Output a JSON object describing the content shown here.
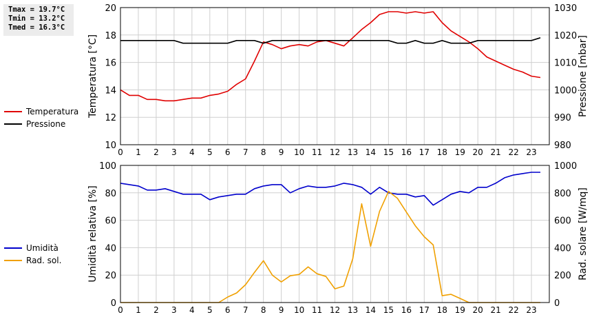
{
  "stats": {
    "tmax": "Tmax = 19.7°C",
    "tmin": "Tmin = 13.2°C",
    "tmed": "Tmed = 16.3°C"
  },
  "chart_data": [
    {
      "type": "line",
      "x": [
        0,
        0.5,
        1,
        1.5,
        2,
        2.5,
        3,
        3.5,
        4,
        4.5,
        5,
        5.5,
        6,
        6.5,
        7,
        7.5,
        8,
        8.5,
        9,
        9.5,
        10,
        10.5,
        11,
        11.5,
        12,
        12.5,
        13,
        13.5,
        14,
        14.5,
        15,
        15.5,
        16,
        16.5,
        17,
        17.5,
        18,
        18.5,
        19,
        19.5,
        20,
        20.5,
        21,
        21.5,
        22,
        22.5,
        23,
        23.5
      ],
      "xlim": [
        0,
        24
      ],
      "xticks": [
        "0",
        "1",
        "2",
        "3",
        "4",
        "5",
        "6",
        "7",
        "8",
        "9",
        "10",
        "11",
        "12",
        "13",
        "14",
        "15",
        "16",
        "17",
        "18",
        "19",
        "20",
        "21",
        "22",
        "23"
      ],
      "ylabel": "Temperatura [°C]",
      "ylim": [
        10,
        20
      ],
      "yticks": [
        "10",
        "12",
        "14",
        "16",
        "18",
        "20"
      ],
      "y2label": "Pressione [mbar]",
      "y2lim": [
        980,
        1030
      ],
      "y2ticks": [
        "980",
        "990",
        "1000",
        "1010",
        "1020",
        "1030"
      ],
      "grid": true,
      "series": [
        {
          "name": "Temperatura",
          "axis": "left",
          "color": "#e00000",
          "values": [
            14.0,
            13.6,
            13.6,
            13.3,
            13.3,
            13.2,
            13.2,
            13.3,
            13.4,
            13.4,
            13.6,
            13.7,
            13.9,
            14.4,
            14.8,
            16.1,
            17.5,
            17.3,
            17.0,
            17.2,
            17.3,
            17.2,
            17.5,
            17.6,
            17.4,
            17.2,
            17.8,
            18.4,
            18.9,
            19.5,
            19.7,
            19.7,
            19.6,
            19.7,
            19.6,
            19.7,
            18.9,
            18.3,
            17.9,
            17.5,
            17.0,
            16.4,
            16.1,
            15.8,
            15.5,
            15.3,
            15.0,
            14.9
          ]
        },
        {
          "name": "Pressione",
          "axis": "right",
          "color": "#000000",
          "values": [
            1018,
            1018,
            1018,
            1018,
            1018,
            1018,
            1018,
            1017,
            1017,
            1017,
            1017,
            1017,
            1017,
            1018,
            1018,
            1018,
            1017,
            1018,
            1018,
            1018,
            1018,
            1018,
            1018,
            1018,
            1018,
            1018,
            1018,
            1018,
            1018,
            1018,
            1018,
            1017,
            1017,
            1018,
            1017,
            1017,
            1018,
            1017,
            1017,
            1017,
            1018,
            1018,
            1018,
            1018,
            1018,
            1018,
            1018,
            1019
          ]
        }
      ]
    },
    {
      "type": "line",
      "x": [
        0,
        0.5,
        1,
        1.5,
        2,
        2.5,
        3,
        3.5,
        4,
        4.5,
        5,
        5.5,
        6,
        6.5,
        7,
        7.5,
        8,
        8.5,
        9,
        9.5,
        10,
        10.5,
        11,
        11.5,
        12,
        12.5,
        13,
        13.5,
        14,
        14.5,
        15,
        15.5,
        16,
        16.5,
        17,
        17.5,
        18,
        18.5,
        19,
        19.5,
        20,
        20.5,
        21,
        21.5,
        22,
        22.5,
        23,
        23.5
      ],
      "xlim": [
        0,
        24
      ],
      "xticks": [
        "0",
        "1",
        "2",
        "3",
        "4",
        "5",
        "6",
        "7",
        "8",
        "9",
        "10",
        "11",
        "12",
        "13",
        "14",
        "15",
        "16",
        "17",
        "18",
        "19",
        "20",
        "21",
        "22",
        "23"
      ],
      "ylabel": "Umidità relativa [%]",
      "ylim": [
        0,
        100
      ],
      "yticks": [
        "0",
        "20",
        "40",
        "60",
        "80",
        "100"
      ],
      "y2label": "Rad. solare [W/mq]",
      "y2lim": [
        0,
        1000
      ],
      "y2ticks": [
        "0",
        "200",
        "400",
        "600",
        "800",
        "1000"
      ],
      "grid": true,
      "series": [
        {
          "name": "Umidità",
          "axis": "left",
          "color": "#0000cc",
          "values": [
            87,
            86,
            85,
            82,
            82,
            83,
            81,
            79,
            79,
            79,
            75,
            77,
            78,
            79,
            79,
            83,
            85,
            86,
            86,
            80,
            83,
            85,
            84,
            84,
            85,
            87,
            86,
            84,
            79,
            84,
            80,
            79,
            79,
            77,
            78,
            71,
            75,
            79,
            81,
            80,
            84,
            84,
            87,
            91,
            93,
            94,
            95,
            95
          ]
        },
        {
          "name": "Rad. sol.",
          "axis": "right",
          "color": "#f0a000",
          "values": [
            0,
            0,
            0,
            0,
            0,
            0,
            0,
            0,
            0,
            0,
            0,
            0,
            40,
            70,
            130,
            220,
            305,
            200,
            150,
            195,
            205,
            260,
            210,
            190,
            100,
            120,
            320,
            720,
            410,
            665,
            810,
            760,
            660,
            560,
            480,
            420,
            50,
            60,
            30,
            0,
            0,
            0,
            0,
            0,
            0,
            0,
            0,
            0
          ]
        }
      ]
    }
  ]
}
